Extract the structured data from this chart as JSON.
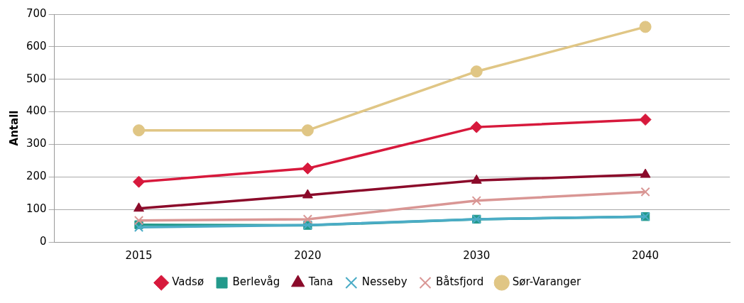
{
  "chart_data": {
    "type": "line",
    "ylabel": "Antall",
    "categories": [
      "2015",
      "2020",
      "2030",
      "2040"
    ],
    "series": [
      {
        "name": "Vadsø",
        "color": "#d7193c",
        "marker": "diamond",
        "values": [
          185,
          226,
          353,
          376
        ]
      },
      {
        "name": "Berlevåg",
        "color": "#23998b",
        "marker": "square",
        "values": [
          53,
          51,
          70,
          78
        ]
      },
      {
        "name": "Tana",
        "color": "#8b0a2a",
        "marker": "triangle",
        "values": [
          103,
          144,
          189,
          207
        ]
      },
      {
        "name": "Nesseby",
        "color": "#4bacc6",
        "marker": "cross",
        "values": [
          45,
          52,
          70,
          78
        ]
      },
      {
        "name": "Båtsfjord",
        "color": "#d99694",
        "marker": "cross",
        "values": [
          66,
          70,
          127,
          154
        ]
      },
      {
        "name": "Sør-Varanger",
        "color": "#e0c685",
        "marker": "circle",
        "values": [
          343,
          343,
          524,
          661
        ]
      }
    ],
    "ylim": [
      0,
      700
    ],
    "yticks": [
      0,
      100,
      200,
      300,
      400,
      500,
      600,
      700
    ],
    "grid": "y",
    "legend": "bottom",
    "line_style": "solid"
  }
}
